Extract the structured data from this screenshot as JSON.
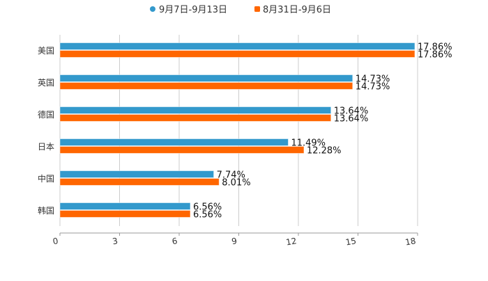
{
  "colors": {
    "series1": "#3399cc",
    "series2": "#ff6600",
    "grid": "#cccccc",
    "axis": "#999999",
    "text": "#333333"
  },
  "chart_data": {
    "type": "bar",
    "orientation": "horizontal",
    "title": "",
    "xlabel": "",
    "ylabel": "",
    "categories": [
      "美国",
      "英国",
      "德国",
      "日本",
      "中国",
      "韩国"
    ],
    "series": [
      {
        "name": "9月7日-9月13日",
        "values": [
          17.86,
          14.73,
          13.64,
          11.49,
          7.74,
          6.56
        ],
        "labels": [
          "17.86%",
          "14.73%",
          "13.64%",
          "11.49%",
          "7.74%",
          "6.56%"
        ]
      },
      {
        "name": "8月31日-9月6日",
        "values": [
          17.86,
          14.73,
          13.64,
          12.28,
          8.01,
          6.56
        ],
        "labels": [
          "17.86%",
          "14.73%",
          "13.64%",
          "12.28%",
          "8.01%",
          "6.56%"
        ]
      }
    ],
    "xlim": [
      0,
      18
    ],
    "xticks": [
      "0",
      "3",
      "6",
      "9",
      "12",
      "15",
      "18"
    ],
    "grid": true,
    "legend": "top-center"
  }
}
